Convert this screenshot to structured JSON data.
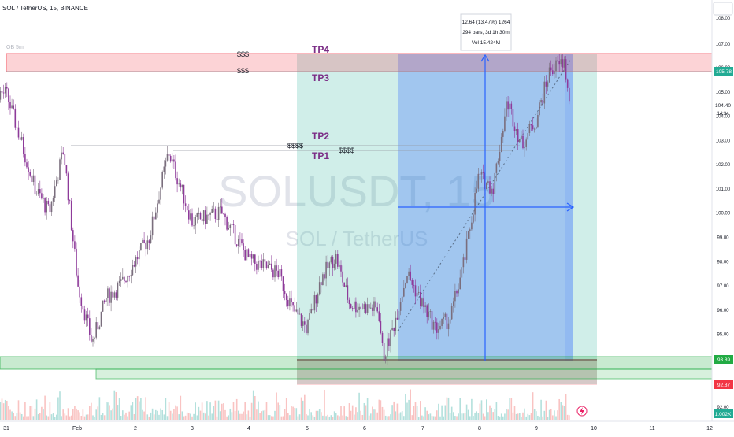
{
  "header": {
    "symbol_line": "SOL / TetherUS, 15, BINANCE",
    "currency": "USDT",
    "ob_label": "OB 5m"
  },
  "watermark": {
    "ticker": "SOLUSDT, 15",
    "description": "SOL / TetherUS"
  },
  "levels": {
    "tp4": "TP4",
    "tp3": "TP3",
    "tp2": "TP2",
    "tp1": "TP1",
    "liq_a": "$$$",
    "liq_b": "$$$",
    "liq_c": "$$$$",
    "liq_d": "$$$$"
  },
  "tooltip": {
    "line1": "12.64 (13.47%) 1264",
    "line2": "294 bars, 3d 1h 30m",
    "line3": "Vol 15.424M"
  },
  "price_axis": {
    "ticks": [
      "106.00",
      "105.00",
      "104.00",
      "103.00",
      "102.00",
      "101.00",
      "100.00",
      "99.00",
      "98.00",
      "97.00",
      "96.00",
      "95.00",
      "94.00",
      "93.00",
      "92.00"
    ],
    "top_tick": "108.00",
    "tick_107": "107.00",
    "current_price": "105.78",
    "last_price": "104.40",
    "countdown": "14:34",
    "level_green": "93.89",
    "level_red": "92.87",
    "volume_label": "1.002K"
  },
  "time_axis": {
    "labels": [
      "31",
      "Feb",
      "2",
      "3",
      "4",
      "5",
      "6",
      "7",
      "8",
      "9",
      "10",
      "11",
      "12"
    ]
  },
  "chart_data": {
    "type": "line",
    "title": "SOL / TetherUS, 15, BINANCE",
    "xlabel": "",
    "ylabel": "",
    "ylim": [
      91.5,
      108.2
    ],
    "x_axis": "date (Jan 31 – Feb 12, 15m bars)",
    "series": [
      {
        "values": [
          {
            "x": "Jan 30",
            "y": 105.2
          },
          {
            "x": "Jan 31 00:00",
            "y": 104.9
          },
          {
            "x": "Jan 31 06:00",
            "y": 103.0
          },
          {
            "x": "Jan 31 12:00",
            "y": 101.0
          },
          {
            "x": "Jan 31 18:00",
            "y": 100.0
          },
          {
            "x": "Feb 1 00:00",
            "y": 102.6
          },
          {
            "x": "Feb 1 06:00",
            "y": 97.0
          },
          {
            "x": "Feb 1 12:00",
            "y": 94.6
          },
          {
            "x": "Feb 1 18:00",
            "y": 96.5
          },
          {
            "x": "Feb 2 00:00",
            "y": 97.0
          },
          {
            "x": "Feb 2 12:00",
            "y": 99.0
          },
          {
            "x": "Feb 2 20:00",
            "y": 102.5
          },
          {
            "x": "Feb 3 06:00",
            "y": 99.6
          },
          {
            "x": "Feb 3 18:00",
            "y": 100.0
          },
          {
            "x": "Feb 4 06:00",
            "y": 98.0
          },
          {
            "x": "Feb 4 18:00",
            "y": 97.5
          },
          {
            "x": "Feb 5 00:00",
            "y": 96.0
          },
          {
            "x": "Feb 5 06:00",
            "y": 95.2
          },
          {
            "x": "Feb 5 12:00",
            "y": 97.3
          },
          {
            "x": "Feb 5 18:00",
            "y": 98.2
          },
          {
            "x": "Feb 6 00:00",
            "y": 96.2
          },
          {
            "x": "Feb 6 12:00",
            "y": 96.0
          },
          {
            "x": "Feb 6 14:00",
            "y": 94.0
          },
          {
            "x": "Feb 6 18:00",
            "y": 95.2
          },
          {
            "x": "Feb 7 00:00",
            "y": 97.5
          },
          {
            "x": "Feb 7 06:00",
            "y": 96.3
          },
          {
            "x": "Feb 7 12:00",
            "y": 95.2
          },
          {
            "x": "Feb 7 18:00",
            "y": 95.6
          },
          {
            "x": "Feb 8 00:00",
            "y": 98.0
          },
          {
            "x": "Feb 8 06:00",
            "y": 101.5
          },
          {
            "x": "Feb 8 12:00",
            "y": 101.0
          },
          {
            "x": "Feb 8 18:00",
            "y": 104.6
          },
          {
            "x": "Feb 9 00:00",
            "y": 102.8
          },
          {
            "x": "Feb 9 06:00",
            "y": 103.8
          },
          {
            "x": "Feb 9 12:00",
            "y": 105.9
          },
          {
            "x": "Feb 9 18:00",
            "y": 106.2
          },
          {
            "x": "Feb 9 20:00",
            "y": 104.4
          }
        ]
      }
    ],
    "annotations": [
      {
        "label": "TP4",
        "price": 106.0
      },
      {
        "label": "TP3",
        "price": 105.78
      },
      {
        "label": "TP2",
        "price": 103.2
      },
      {
        "label": "TP1",
        "price": 102.6
      }
    ],
    "zones": {
      "supply": [
        105.78,
        106.7
      ],
      "demand": [
        93.5,
        94.2
      ],
      "stop": [
        92.87,
        93.89
      ]
    },
    "measurement": {
      "change": 12.64,
      "change_pct": 13.47,
      "ticks": 1264,
      "bars": 294,
      "duration": "3d 1h 30m",
      "volume": "15.424M"
    },
    "x_ticks": [
      "31",
      "Feb",
      "2",
      "3",
      "4",
      "5",
      "6",
      "7",
      "8",
      "9",
      "10",
      "11",
      "12"
    ],
    "y_ticks": [
      92,
      93,
      94,
      95,
      96,
      97,
      98,
      99,
      100,
      101,
      102,
      103,
      104,
      105,
      106,
      107,
      108
    ],
    "grid": false,
    "legend": "none"
  }
}
